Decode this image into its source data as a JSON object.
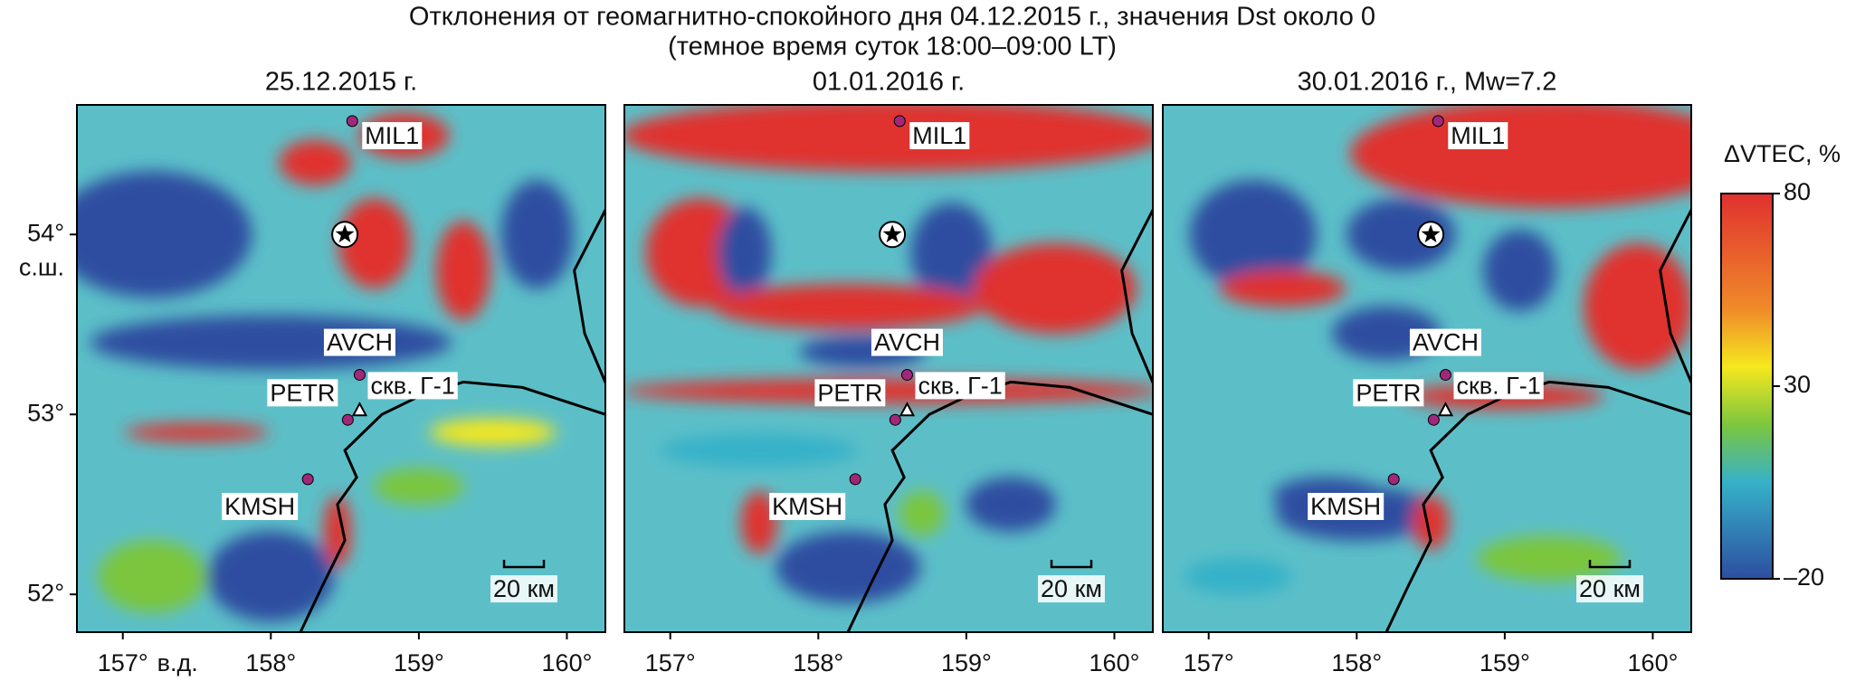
{
  "title": [
    "Отклонения от геомагнитно-спокойного дня 04.12.2015 г., значения Dst около 0",
    "(темное время суток 18:00–09:00 LT)"
  ],
  "panels": [
    {
      "title": "25.12.2015 г."
    },
    {
      "title": "01.01.2016 г."
    },
    {
      "title": "30.01.2016 г., Mw=7.2"
    }
  ],
  "stations": [
    "MIL1",
    "AVCH",
    "PETR",
    "KMSH"
  ],
  "well": "скв. Г-1",
  "scale_bar": "20 км",
  "lat_ticks": [
    {
      "value": 54,
      "label": "54°"
    },
    {
      "value": 53,
      "label": "53°"
    },
    {
      "value": 52,
      "label": "52°"
    }
  ],
  "lat_unit": "с.ш.",
  "lon_ticks": [
    {
      "value": 157,
      "label": "157°"
    },
    {
      "value": 158,
      "label": "158°"
    },
    {
      "value": 159,
      "label": "159°"
    },
    {
      "value": 160,
      "label": "160°"
    }
  ],
  "lon_unit": "в.д.",
  "colorbar": {
    "label": "ΔVTEC, %",
    "lim": [
      -20,
      80
    ],
    "ticks": [
      80,
      30,
      {
        "value": -20,
        "label": "–20"
      }
    ]
  }
}
